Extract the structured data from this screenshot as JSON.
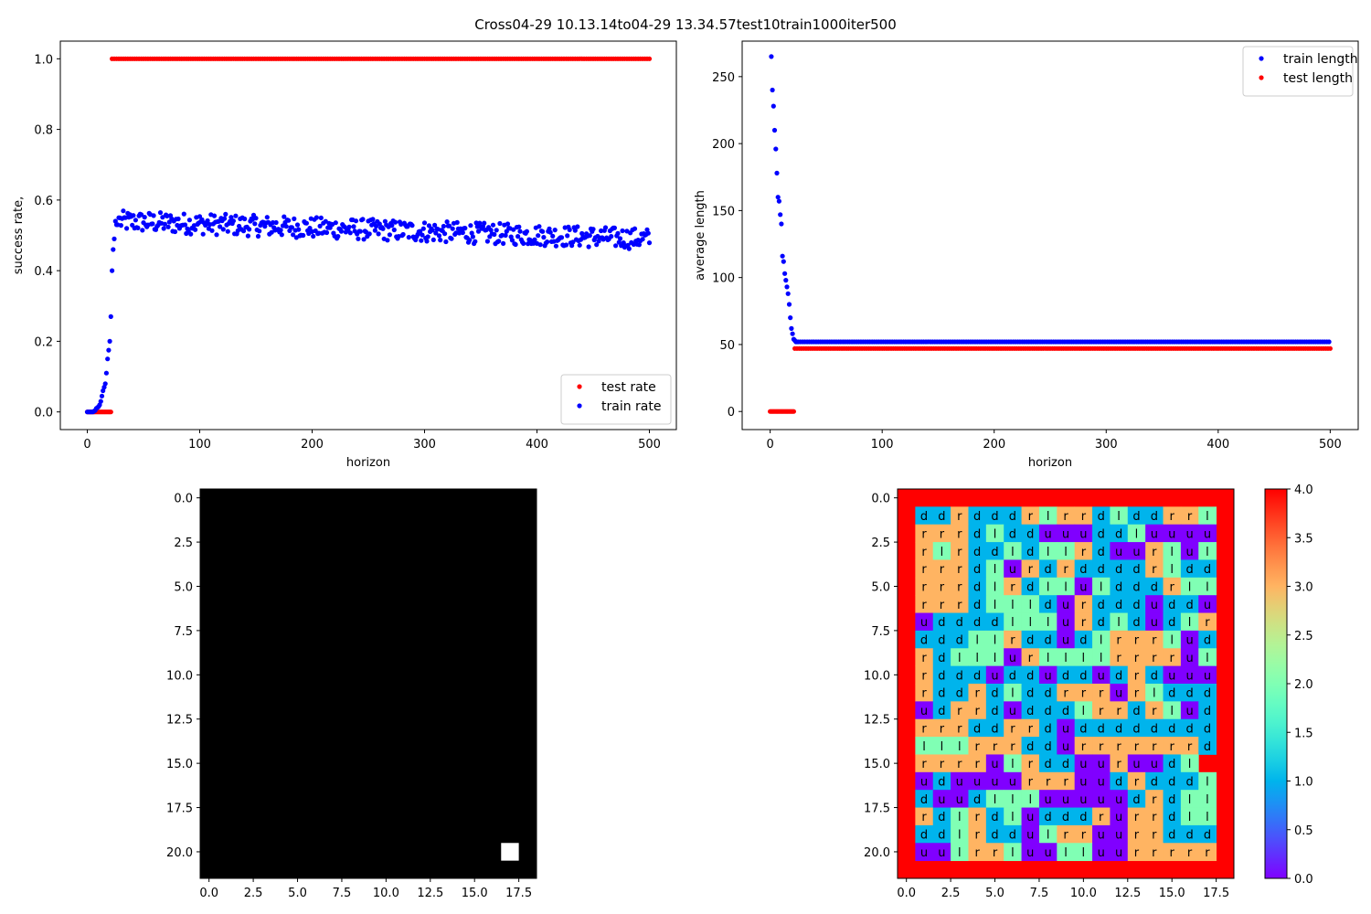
{
  "figure_title": "Cross04-29 10.13.14to04-29 13.34.57test10train1000iter500",
  "colors": {
    "train": "#0000ff",
    "test": "#ff0000"
  },
  "chart_data": [
    {
      "type": "scatter",
      "xlabel": "horizon",
      "ylabel": "success rate,",
      "xlim": [
        -24,
        524
      ],
      "ylim": [
        -0.05,
        1.05
      ],
      "xticks": [
        0,
        100,
        200,
        300,
        400,
        500
      ],
      "yticks": [
        0.0,
        0.2,
        0.4,
        0.6,
        0.8,
        1.0
      ],
      "ytick_labels": [
        "0.0",
        "0.2",
        "0.4",
        "0.6",
        "0.8",
        "1.0"
      ],
      "legend_position": "lower right",
      "series": [
        {
          "name": "test rate",
          "color": "#ff0000",
          "segments": [
            {
              "x_start": 0,
              "x_end": 21,
              "x_step": 1,
              "y": 0.0
            },
            {
              "x_start": 22,
              "x_end": 500,
              "x_step": 2,
              "y": 1.0
            }
          ]
        },
        {
          "name": "train rate",
          "color": "#0000ff",
          "x": [
            0,
            1,
            2,
            3,
            4,
            5,
            6,
            7,
            8,
            9,
            10,
            11,
            12,
            13,
            14,
            15,
            16,
            17,
            18,
            19,
            20,
            21,
            22,
            23,
            24,
            25,
            26,
            27,
            28
          ],
          "y": [
            0.0,
            0.0,
            0.0,
            0.0,
            0.0,
            0.0,
            0.002,
            0.004,
            0.01,
            0.012,
            0.015,
            0.02,
            0.03,
            0.045,
            0.06,
            0.07,
            0.08,
            0.11,
            0.15,
            0.175,
            0.2,
            0.27,
            0.4,
            0.46,
            0.49,
            0.54,
            0.53,
            0.53,
            0.55
          ],
          "noise_band": {
            "x_start": 29,
            "x_end": 500,
            "y_start": 0.54,
            "y_end": 0.49,
            "spread": 0.03
          }
        }
      ]
    },
    {
      "type": "scatter",
      "xlabel": "horizon",
      "ylabel": "average length",
      "xlim": [
        -25,
        525
      ],
      "ylim": [
        -13.5,
        276.5
      ],
      "xticks": [
        0,
        100,
        200,
        300,
        400,
        500
      ],
      "yticks": [
        0,
        50,
        100,
        150,
        200,
        250
      ],
      "ytick_labels": [
        "0",
        "50",
        "100",
        "150",
        "200",
        "250"
      ],
      "legend_position": "upper right",
      "series": [
        {
          "name": "train length",
          "color": "#0000ff",
          "x": [
            1,
            2,
            3,
            4,
            5,
            6,
            7,
            8,
            9,
            10,
            11,
            12,
            13,
            14,
            15,
            16,
            17,
            18,
            19,
            20,
            21,
            22,
            23,
            24
          ],
          "y": [
            265,
            240,
            228,
            210,
            196,
            178,
            160,
            157,
            147,
            140,
            116,
            112,
            103,
            98,
            93,
            88,
            80,
            70,
            62,
            58,
            54,
            53,
            52,
            52
          ],
          "flat": {
            "x_start": 25,
            "x_end": 500,
            "x_step": 2,
            "y": 52
          }
        },
        {
          "name": "test length",
          "color": "#ff0000",
          "segments": [
            {
              "x_start": 0,
              "x_end": 21,
              "x_step": 1,
              "y": 0
            },
            {
              "x_start": 22,
              "x_end": 500,
              "x_step": 2,
              "y": 47
            }
          ]
        }
      ]
    },
    {
      "type": "heatmap",
      "rows": 22,
      "cols": 19,
      "colormap": "gray",
      "background": 0,
      "bright_cells": [
        [
          20,
          17
        ]
      ],
      "xticks": [
        0.0,
        2.5,
        5.0,
        7.5,
        10.0,
        12.5,
        15.0,
        17.5
      ],
      "xtick_labels": [
        "0.0",
        "2.5",
        "5.0",
        "7.5",
        "10.0",
        "12.5",
        "15.0",
        "17.5"
      ],
      "yticks": [
        0.0,
        2.5,
        5.0,
        7.5,
        10.0,
        12.5,
        15.0,
        17.5,
        20.0
      ],
      "ytick_labels": [
        "0.0",
        "2.5",
        "5.0",
        "7.5",
        "10.0",
        "12.5",
        "15.0",
        "17.5",
        "20.0"
      ]
    },
    {
      "type": "heatmap",
      "rows": 22,
      "cols": 19,
      "colormap": "rainbow",
      "border_value": 4,
      "value_map": {
        "u": 0,
        "d": 1,
        "l": 2,
        "r": 3
      },
      "grid": [
        "ddrdddrlrrdlddrrl",
        "rrrdldduuuddluuuuu",
        "rlrddldllrduurlul",
        "rrrdlurdrddddrlddd",
        "rrrdlrdlluldddrlll",
        "rrrdllldurdddudduu",
        "uddddlllurdldudlrd",
        "dddllrddudlrrrlud",
        "rdlllurllllrrrrul",
        "rdddudduddudrduuu",
        "rddrdlddrrrurldddd",
        "udrrdudddlrrdrludd",
        "rrrddrrdudddddddd",
        "lllrrrddurrrrrrrdl",
        "rrrrulrdduuruudl",
        "uduuuurrruudrdddl",
        "duudllluuuuudrdll",
        "rdlrdludddrurrdlld",
        "ddlrddulrruurrddd",
        "uulrrluulluurrrrr"
      ],
      "xticks": [
        0.0,
        2.5,
        5.0,
        7.5,
        10.0,
        12.5,
        15.0,
        17.5
      ],
      "xtick_labels": [
        "0.0",
        "2.5",
        "5.0",
        "7.5",
        "10.0",
        "12.5",
        "15.0",
        "17.5"
      ],
      "yticks": [
        0.0,
        2.5,
        5.0,
        7.5,
        10.0,
        12.5,
        15.0,
        17.5,
        20.0
      ],
      "ytick_labels": [
        "0.0",
        "2.5",
        "5.0",
        "7.5",
        "10.0",
        "12.5",
        "15.0",
        "17.5",
        "20.0"
      ],
      "colorbar": {
        "range": [
          0.0,
          4.0
        ],
        "ticks": [
          0.0,
          0.5,
          1.0,
          1.5,
          2.0,
          2.5,
          3.0,
          3.5,
          4.0
        ],
        "tick_labels": [
          "0.0",
          "0.5",
          "1.0",
          "1.5",
          "2.0",
          "2.5",
          "3.0",
          "3.5",
          "4.0"
        ]
      }
    }
  ]
}
